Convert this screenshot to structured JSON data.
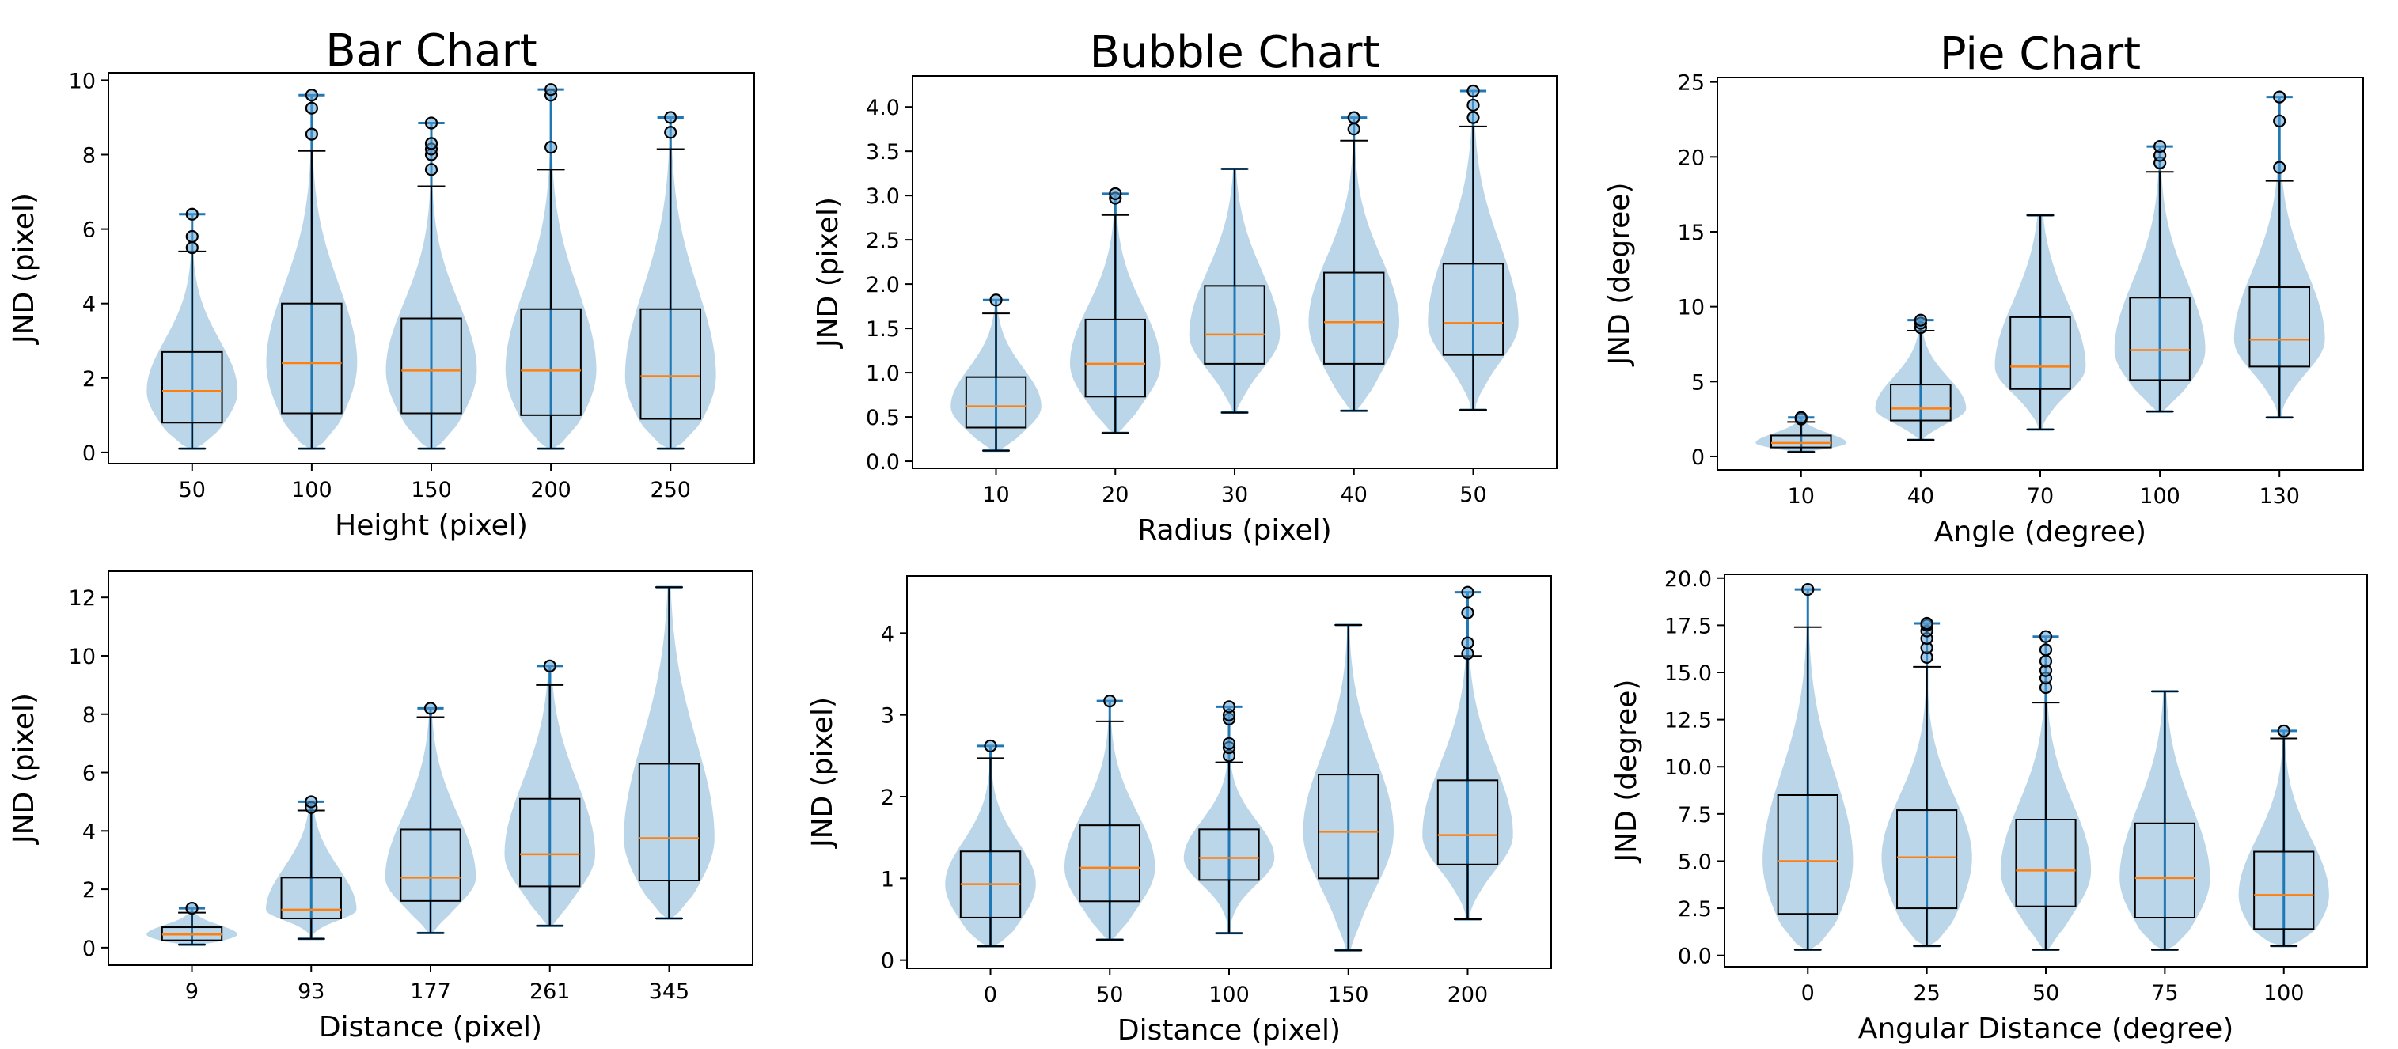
{
  "column_titles": [
    "Bar Chart",
    "Bubble Chart",
    "Pie Chart"
  ],
  "chart_data": [
    {
      "type": "violin+box",
      "title": "Bar Chart",
      "xlabel": "Height (pixel)",
      "ylabel": "JND (pixel)",
      "categories": [
        "50",
        "100",
        "150",
        "200",
        "250"
      ],
      "ylim": [
        -0.3,
        10.2
      ],
      "yticks": [
        0,
        2,
        4,
        6,
        8,
        10
      ],
      "ytick_labels": [
        "0",
        "2",
        "4",
        "6",
        "8",
        "10"
      ],
      "stats": [
        {
          "min": 0.1,
          "q1": 0.8,
          "median": 1.65,
          "q3": 2.7,
          "whislo": 0.1,
          "whishi": 5.4,
          "max": 6.4,
          "fliers": [
            5.5,
            5.8,
            6.4
          ]
        },
        {
          "min": 0.1,
          "q1": 1.05,
          "median": 2.4,
          "q3": 4.0,
          "whislo": 0.1,
          "whishi": 8.1,
          "max": 9.6,
          "fliers": [
            8.55,
            9.25,
            9.6
          ]
        },
        {
          "min": 0.1,
          "q1": 1.05,
          "median": 2.2,
          "q3": 3.6,
          "whislo": 0.1,
          "whishi": 7.15,
          "max": 8.85,
          "fliers": [
            7.6,
            8.0,
            8.15,
            8.3,
            8.85
          ]
        },
        {
          "min": 0.1,
          "q1": 1.0,
          "median": 2.2,
          "q3": 3.85,
          "whislo": 0.1,
          "whishi": 7.6,
          "max": 9.75,
          "fliers": [
            8.2,
            9.6,
            9.75
          ]
        },
        {
          "min": 0.1,
          "q1": 0.9,
          "median": 2.05,
          "q3": 3.85,
          "whislo": 0.1,
          "whishi": 8.15,
          "max": 9.0,
          "fliers": [
            8.6,
            9.0
          ]
        }
      ]
    },
    {
      "type": "violin+box",
      "title": "Bubble Chart",
      "xlabel": "Radius (pixel)",
      "ylabel": "JND (pixel)",
      "categories": [
        "10",
        "20",
        "30",
        "40",
        "50"
      ],
      "ylim": [
        -0.08,
        4.35
      ],
      "yticks": [
        0,
        0.5,
        1.0,
        1.5,
        2.0,
        2.5,
        3.0,
        3.5,
        4.0
      ],
      "ytick_labels": [
        "0.0",
        "0.5",
        "1.0",
        "1.5",
        "2.0",
        "2.5",
        "3.0",
        "3.5",
        "4.0"
      ],
      "stats": [
        {
          "min": 0.12,
          "q1": 0.38,
          "median": 0.62,
          "q3": 0.95,
          "whislo": 0.12,
          "whishi": 1.67,
          "max": 1.82,
          "fliers": [
            1.82
          ]
        },
        {
          "min": 0.32,
          "q1": 0.73,
          "median": 1.1,
          "q3": 1.6,
          "whislo": 0.32,
          "whishi": 2.78,
          "max": 3.02,
          "fliers": [
            2.97,
            3.02
          ]
        },
        {
          "min": 0.55,
          "q1": 1.1,
          "median": 1.43,
          "q3": 1.98,
          "whislo": 0.55,
          "whishi": 3.3,
          "max": 3.3,
          "fliers": []
        },
        {
          "min": 0.57,
          "q1": 1.1,
          "median": 1.57,
          "q3": 2.13,
          "whislo": 0.57,
          "whishi": 3.62,
          "max": 3.88,
          "fliers": [
            3.75,
            3.88
          ]
        },
        {
          "min": 0.58,
          "q1": 1.2,
          "median": 1.56,
          "q3": 2.23,
          "whislo": 0.58,
          "whishi": 3.78,
          "max": 4.18,
          "fliers": [
            3.88,
            4.02,
            4.18
          ]
        }
      ]
    },
    {
      "type": "violin+box",
      "title": "Pie Chart",
      "xlabel": "Angle (degree)",
      "ylabel": "JND (degree)",
      "categories": [
        "10",
        "40",
        "70",
        "100",
        "130"
      ],
      "ylim": [
        -0.9,
        25.3
      ],
      "yticks": [
        0,
        5,
        10,
        15,
        20,
        25
      ],
      "ytick_labels": [
        "0",
        "5",
        "10",
        "15",
        "20",
        "25"
      ],
      "stats": [
        {
          "min": 0.3,
          "q1": 0.6,
          "median": 0.9,
          "q3": 1.4,
          "whislo": 0.3,
          "whishi": 2.3,
          "max": 2.6,
          "fliers": [
            2.5,
            2.6
          ]
        },
        {
          "min": 1.1,
          "q1": 2.4,
          "median": 3.2,
          "q3": 4.8,
          "whislo": 1.1,
          "whishi": 8.4,
          "max": 9.1,
          "fliers": [
            8.6,
            8.9,
            9.1
          ]
        },
        {
          "min": 1.8,
          "q1": 4.5,
          "median": 6.0,
          "q3": 9.3,
          "whislo": 1.8,
          "whishi": 16.1,
          "max": 16.1,
          "fliers": []
        },
        {
          "min": 3.0,
          "q1": 5.1,
          "median": 7.1,
          "q3": 10.6,
          "whislo": 3.0,
          "whishi": 19.0,
          "max": 20.7,
          "fliers": [
            19.6,
            20.1,
            20.7
          ]
        },
        {
          "min": 2.6,
          "q1": 6.0,
          "median": 7.8,
          "q3": 11.3,
          "whislo": 2.6,
          "whishi": 18.4,
          "max": 24.0,
          "fliers": [
            19.3,
            22.4,
            24.0
          ]
        }
      ]
    },
    {
      "type": "violin+box",
      "title": "",
      "xlabel": "Distance (pixel)",
      "ylabel": "JND (pixel)",
      "categories": [
        "9",
        "93",
        "177",
        "261",
        "345"
      ],
      "ylim": [
        -0.6,
        12.9
      ],
      "yticks": [
        0,
        2,
        4,
        6,
        8,
        10,
        12
      ],
      "ytick_labels": [
        "0",
        "2",
        "4",
        "6",
        "8",
        "10",
        "12"
      ],
      "stats": [
        {
          "min": 0.1,
          "q1": 0.25,
          "median": 0.45,
          "q3": 0.7,
          "whislo": 0.1,
          "whishi": 1.2,
          "max": 1.35,
          "fliers": [
            1.35
          ]
        },
        {
          "min": 0.3,
          "q1": 1.0,
          "median": 1.3,
          "q3": 2.4,
          "whislo": 0.3,
          "whishi": 4.7,
          "max": 5.0,
          "fliers": [
            4.8,
            5.0
          ]
        },
        {
          "min": 0.5,
          "q1": 1.6,
          "median": 2.4,
          "q3": 4.05,
          "whislo": 0.5,
          "whishi": 7.9,
          "max": 8.2,
          "fliers": [
            8.2
          ]
        },
        {
          "min": 0.75,
          "q1": 2.1,
          "median": 3.2,
          "q3": 5.1,
          "whislo": 0.75,
          "whishi": 9.0,
          "max": 9.65,
          "fliers": [
            9.65
          ]
        },
        {
          "min": 1.0,
          "q1": 2.3,
          "median": 3.75,
          "q3": 6.3,
          "whislo": 1.0,
          "whishi": 12.35,
          "max": 12.35,
          "fliers": []
        }
      ]
    },
    {
      "type": "violin+box",
      "title": "",
      "xlabel": "Distance (pixel)",
      "ylabel": "JND (pixel)",
      "categories": [
        "0",
        "50",
        "100",
        "150",
        "200"
      ],
      "ylim": [
        -0.1,
        4.7
      ],
      "yticks": [
        0,
        1,
        2,
        3,
        4
      ],
      "ytick_labels": [
        "0",
        "1",
        "2",
        "3",
        "4"
      ],
      "stats": [
        {
          "min": 0.17,
          "q1": 0.52,
          "median": 0.93,
          "q3": 1.33,
          "whislo": 0.17,
          "whishi": 2.47,
          "max": 2.62,
          "fliers": [
            2.62
          ]
        },
        {
          "min": 0.25,
          "q1": 0.72,
          "median": 1.13,
          "q3": 1.65,
          "whislo": 0.25,
          "whishi": 2.92,
          "max": 3.17,
          "fliers": [
            3.17
          ]
        },
        {
          "min": 0.33,
          "q1": 0.98,
          "median": 1.25,
          "q3": 1.6,
          "whislo": 0.33,
          "whishi": 2.42,
          "max": 3.1,
          "fliers": [
            2.5,
            2.6,
            2.65,
            2.95,
            3.0,
            3.1
          ]
        },
        {
          "min": 0.12,
          "q1": 1.0,
          "median": 1.57,
          "q3": 2.27,
          "whislo": 0.12,
          "whishi": 4.1,
          "max": 4.1,
          "fliers": []
        },
        {
          "min": 0.5,
          "q1": 1.17,
          "median": 1.53,
          "q3": 2.2,
          "whislo": 0.5,
          "whishi": 3.72,
          "max": 4.5,
          "fliers": [
            3.75,
            3.88,
            4.25,
            4.5
          ]
        }
      ]
    },
    {
      "type": "violin+box",
      "title": "",
      "xlabel": "Angular Distance (degree)",
      "ylabel": "JND (degree)",
      "categories": [
        "0",
        "25",
        "50",
        "75",
        "100"
      ],
      "ylim": [
        -0.6,
        20.2
      ],
      "yticks": [
        0,
        2.5,
        5,
        7.5,
        10,
        12.5,
        15,
        17.5,
        20
      ],
      "ytick_labels": [
        "0.0",
        "2.5",
        "5.0",
        "7.5",
        "10.0",
        "12.5",
        "15.0",
        "17.5",
        "20.0"
      ],
      "stats": [
        {
          "min": 0.3,
          "q1": 2.2,
          "median": 5.0,
          "q3": 8.5,
          "whislo": 0.3,
          "whishi": 17.4,
          "max": 19.4,
          "fliers": [
            19.4
          ]
        },
        {
          "min": 0.5,
          "q1": 2.5,
          "median": 5.2,
          "q3": 7.7,
          "whislo": 0.5,
          "whishi": 15.3,
          "max": 17.6,
          "fliers": [
            15.8,
            16.3,
            16.8,
            17.2,
            17.5,
            17.6
          ]
        },
        {
          "min": 0.3,
          "q1": 2.6,
          "median": 4.5,
          "q3": 7.2,
          "whislo": 0.3,
          "whishi": 13.4,
          "max": 16.9,
          "fliers": [
            14.2,
            14.7,
            15.1,
            15.6,
            16.2,
            16.9
          ]
        },
        {
          "min": 0.3,
          "q1": 2.0,
          "median": 4.1,
          "q3": 7.0,
          "whislo": 0.3,
          "whishi": 14.0,
          "max": 14.0,
          "fliers": []
        },
        {
          "min": 0.5,
          "q1": 1.4,
          "median": 3.2,
          "q3": 5.5,
          "whislo": 0.5,
          "whishi": 11.5,
          "max": 11.9,
          "fliers": [
            11.9
          ]
        }
      ]
    }
  ],
  "colors": {
    "violin_fill": "#1f77b4",
    "violin_opacity": 0.3,
    "violin_line": "#1f77b4",
    "median": "#ff7f0e",
    "box_edge": "#000000",
    "flier_fill": "#5aa0d6"
  }
}
